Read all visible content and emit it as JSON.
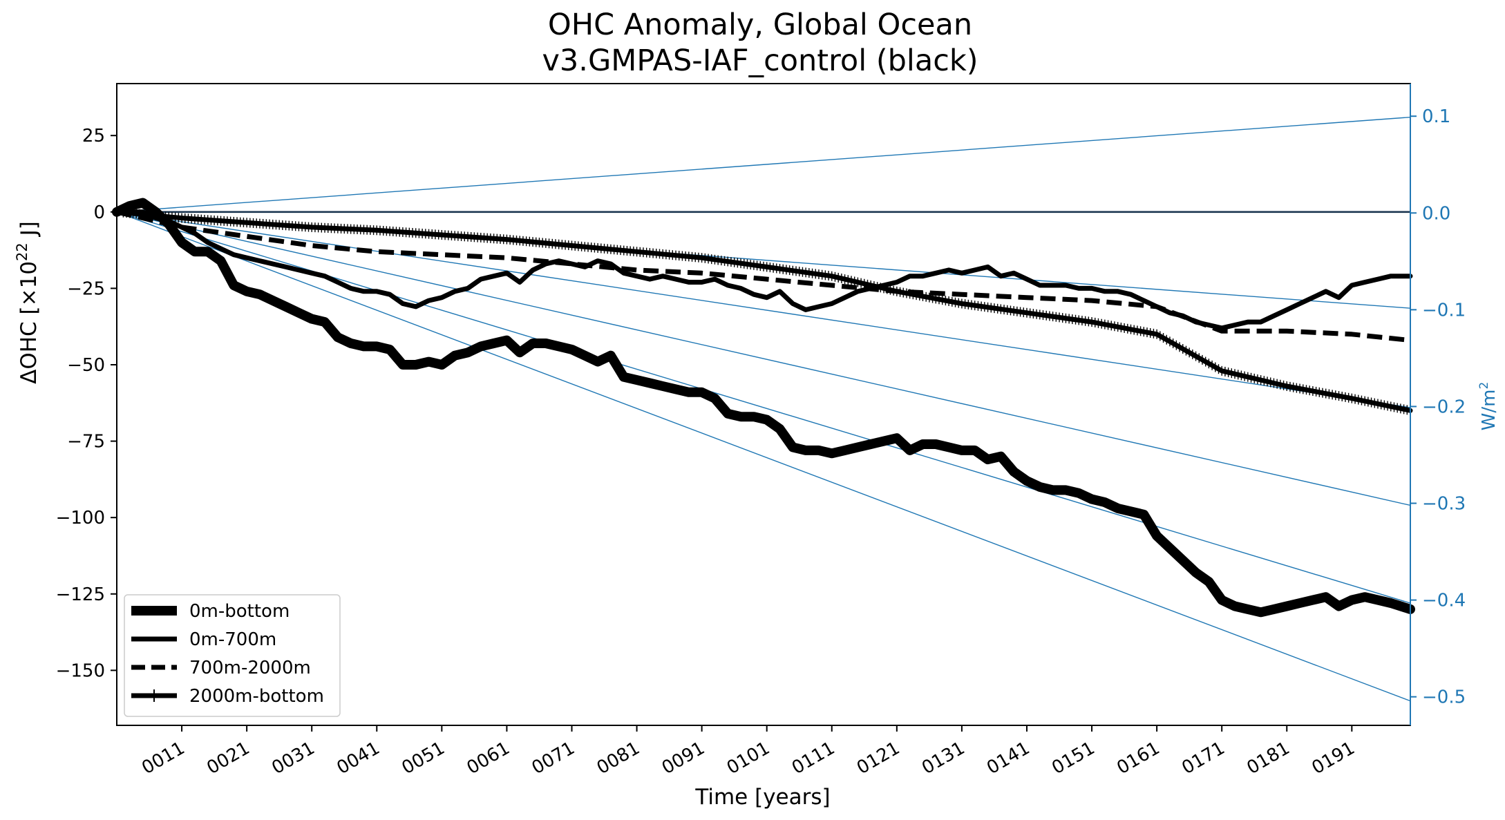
{
  "chart_data": {
    "type": "line",
    "title": "OHC Anomaly, Global Ocean",
    "subtitle": "v3.GMPAS-IAF_control (black)",
    "xlabel": "Time [years]",
    "ylabel": "ΔOHC [×10²² J]",
    "ylabel_base": "ΔOHC [×10",
    "ylabel_exp": "22",
    "ylabel_unit": " J]",
    "y2label": "W/m²",
    "y2label_base": "W/m",
    "y2label_exp": "2",
    "xlim": [
      1,
      200
    ],
    "ylim": [
      -168,
      42
    ],
    "y2lim": [
      -0.5295,
      0.1337
    ],
    "xticks": [
      11,
      21,
      31,
      41,
      51,
      61,
      71,
      81,
      91,
      101,
      111,
      121,
      131,
      141,
      151,
      161,
      171,
      181,
      191
    ],
    "xtick_labels": [
      "0011",
      "0021",
      "0031",
      "0041",
      "0051",
      "0061",
      "0071",
      "0081",
      "0091",
      "0101",
      "0111",
      "0121",
      "0131",
      "0141",
      "0151",
      "0161",
      "0171",
      "0181",
      "0191"
    ],
    "yticks": [
      25,
      0,
      -25,
      -50,
      -75,
      -100,
      -125,
      -150
    ],
    "ytick_labels": [
      "25",
      "0",
      "−25",
      "−50",
      "−75",
      "−100",
      "−125",
      "−150"
    ],
    "y2ticks": [
      0.1,
      0.0,
      -0.1,
      -0.2,
      -0.3,
      -0.4,
      -0.5
    ],
    "y2tick_labels": [
      "0.1",
      "0.0",
      "−0.1",
      "−0.2",
      "−0.3",
      "−0.4",
      "−0.5"
    ],
    "grid": false,
    "legend_position": "lower-left",
    "colors": {
      "series": "#000000",
      "reference": "#1f77b4"
    },
    "reference_lines_wm2": [
      0.1,
      -0.1,
      -0.2,
      -0.3,
      -0.4,
      -0.5
    ],
    "reference_line_end_values": [
      31,
      -31.5,
      -64,
      -96,
      -128,
      -160
    ],
    "series": [
      {
        "name": "0m-bottom",
        "style": "thick",
        "x": [
          1,
          3,
          5,
          7,
          9,
          11,
          13,
          15,
          17,
          19,
          21,
          23,
          25,
          27,
          29,
          31,
          33,
          35,
          37,
          39,
          41,
          43,
          45,
          47,
          49,
          51,
          53,
          55,
          57,
          59,
          61,
          63,
          65,
          67,
          69,
          71,
          73,
          75,
          77,
          79,
          81,
          83,
          85,
          87,
          89,
          91,
          93,
          95,
          97,
          99,
          101,
          103,
          105,
          107,
          109,
          111,
          113,
          115,
          117,
          119,
          121,
          123,
          125,
          127,
          129,
          131,
          133,
          135,
          137,
          139,
          141,
          143,
          145,
          147,
          149,
          151,
          153,
          155,
          157,
          159,
          161,
          163,
          165,
          167,
          169,
          171,
          173,
          175,
          177,
          179,
          181,
          183,
          185,
          187,
          189,
          191,
          193,
          195,
          197,
          200
        ],
        "values": [
          0,
          2,
          3,
          0,
          -4,
          -10,
          -13,
          -13,
          -16,
          -24,
          -26,
          -27,
          -29,
          -31,
          -33,
          -35,
          -36,
          -41,
          -43,
          -44,
          -44,
          -45,
          -50,
          -50,
          -49,
          -50,
          -47,
          -46,
          -44,
          -43,
          -42,
          -46,
          -43,
          -43,
          -44,
          -45,
          -47,
          -49,
          -47,
          -54,
          -55,
          -56,
          -57,
          -58,
          -59,
          -59,
          -61,
          -66,
          -67,
          -67,
          -68,
          -71,
          -77,
          -78,
          -78,
          -79,
          -78,
          -77,
          -76,
          -75,
          -74,
          -78,
          -76,
          -76,
          -77,
          -78,
          -78,
          -81,
          -80,
          -85,
          -88,
          -90,
          -91,
          -91,
          -92,
          -94,
          -95,
          -97,
          -98,
          -99,
          -106,
          -110,
          -114,
          -118,
          -121,
          -127,
          -129,
          -130,
          -131,
          -130,
          -129,
          -128,
          -127,
          -126,
          -129,
          -127,
          -126,
          -127,
          -128,
          -130
        ]
      },
      {
        "name": "0m-700m",
        "style": "solid",
        "x": [
          1,
          3,
          5,
          7,
          9,
          11,
          13,
          15,
          17,
          19,
          21,
          23,
          25,
          27,
          29,
          31,
          33,
          35,
          37,
          39,
          41,
          43,
          45,
          47,
          49,
          51,
          53,
          55,
          57,
          59,
          61,
          63,
          65,
          67,
          69,
          71,
          73,
          75,
          77,
          79,
          81,
          83,
          85,
          87,
          89,
          91,
          93,
          95,
          97,
          99,
          101,
          103,
          105,
          107,
          109,
          111,
          113,
          115,
          117,
          119,
          121,
          123,
          125,
          127,
          129,
          131,
          133,
          135,
          137,
          139,
          141,
          143,
          145,
          147,
          149,
          151,
          153,
          155,
          157,
          159,
          161,
          163,
          165,
          167,
          169,
          171,
          173,
          175,
          177,
          179,
          181,
          183,
          185,
          187,
          189,
          191,
          193,
          195,
          197,
          200
        ],
        "values": [
          0,
          0,
          0,
          -2,
          -3,
          -5,
          -7,
          -10,
          -12,
          -14,
          -15,
          -16,
          -17,
          -18,
          -19,
          -20,
          -21,
          -23,
          -25,
          -26,
          -26,
          -27,
          -30,
          -31,
          -29,
          -28,
          -26,
          -25,
          -22,
          -21,
          -20,
          -23,
          -19,
          -17,
          -16,
          -17,
          -18,
          -16,
          -17,
          -20,
          -21,
          -22,
          -21,
          -22,
          -23,
          -23,
          -22,
          -24,
          -25,
          -27,
          -28,
          -26,
          -30,
          -32,
          -31,
          -30,
          -28,
          -26,
          -25,
          -24,
          -23,
          -21,
          -21,
          -20,
          -19,
          -20,
          -19,
          -18,
          -21,
          -20,
          -22,
          -24,
          -24,
          -24,
          -25,
          -25,
          -26,
          -26,
          -27,
          -29,
          -31,
          -33,
          -34,
          -36,
          -37,
          -38,
          -37,
          -36,
          -36,
          -34,
          -32,
          -30,
          -28,
          -26,
          -28,
          -24,
          -23,
          -22,
          -21,
          -21
        ]
      },
      {
        "name": "700m-2000m",
        "style": "dashed",
        "x": [
          1,
          11,
          21,
          31,
          41,
          51,
          61,
          71,
          81,
          91,
          101,
          111,
          121,
          131,
          141,
          151,
          161,
          171,
          181,
          191,
          200
        ],
        "values": [
          0,
          -5,
          -8,
          -11,
          -13,
          -14,
          -15,
          -17,
          -19,
          -20,
          -22,
          -24,
          -26,
          -27,
          -28,
          -29,
          -31,
          -39,
          -39,
          -40,
          -42
        ]
      },
      {
        "name": "2000m-bottom",
        "style": "plus",
        "x": [
          1,
          11,
          21,
          31,
          41,
          51,
          61,
          71,
          81,
          91,
          101,
          111,
          121,
          131,
          141,
          151,
          161,
          166,
          171,
          181,
          191,
          200
        ],
        "values": [
          0,
          -2,
          -3.5,
          -5,
          -6,
          -7.5,
          -9,
          -11,
          -13,
          -15,
          -18,
          -21,
          -26,
          -30,
          -33,
          -36,
          -40,
          -46,
          -52,
          -57,
          -61,
          -65
        ]
      }
    ]
  }
}
